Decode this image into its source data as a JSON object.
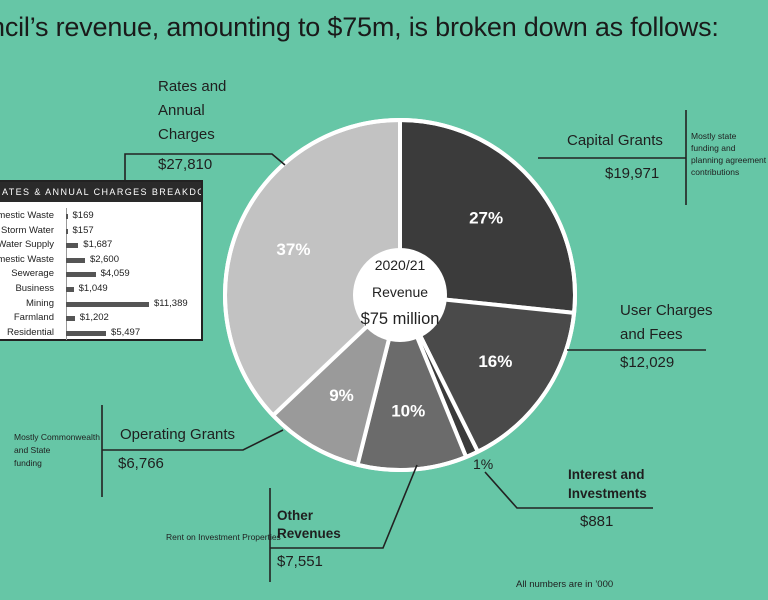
{
  "headline": "ncil’s revenue, amounting to $75m, is broken down as follows:",
  "chart_data": {
    "type": "pie",
    "center": {
      "year": "2020/21",
      "label": "Revenue",
      "total": "$75 million"
    },
    "slices": [
      {
        "name": "Capital Grants",
        "value": 19971,
        "value_label": "$19,971",
        "percent_label": "27%",
        "color": "#3b3b3b"
      },
      {
        "name": "User Charges and Fees",
        "value": 12029,
        "value_label": "$12,029",
        "percent_label": "16%",
        "color": "#4a4a4a"
      },
      {
        "name": "Interest and Investments",
        "value": 881,
        "value_label": "$881",
        "percent_label": "1%",
        "color": "#3a3a3a"
      },
      {
        "name": "Other Revenues",
        "value": 7551,
        "value_label": "$7,551",
        "percent_label": "10%",
        "color": "#6b6b6b"
      },
      {
        "name": "Operating Grants",
        "value": 6766,
        "value_label": "$6,766",
        "percent_label": "9%",
        "color": "#9a9a9a"
      },
      {
        "name": "Rates and Annual Charges",
        "value": 27810,
        "value_label": "$27,810",
        "percent_label": "37%",
        "color": "#c2c2c2"
      }
    ],
    "breakdown": {
      "title": "ATES & ANNUAL CHARGES BREAKDOWN",
      "items": [
        {
          "name": "mestic Waste",
          "value": 169,
          "label": "$169"
        },
        {
          "name": "Storm Water",
          "value": 157,
          "label": "$157"
        },
        {
          "name": "Water Supply",
          "value": 1687,
          "label": "$1,687"
        },
        {
          "name": "mestic Waste",
          "value": 2600,
          "label": "$2,600"
        },
        {
          "name": "Sewerage",
          "value": 4059,
          "label": "$4,059"
        },
        {
          "name": "Business",
          "value": 1049,
          "label": "$1,049"
        },
        {
          "name": "Mining",
          "value": 11389,
          "label": "$11,389"
        },
        {
          "name": "Farmland",
          "value": 1202,
          "label": "$1,202"
        },
        {
          "name": "Residential",
          "value": 5497,
          "label": "$5,497"
        }
      ]
    }
  },
  "labels": {
    "rates_title_1": "Rates and",
    "rates_title_2": "Annual",
    "rates_title_3": "Charges",
    "rates_amount": "$27,810",
    "capital_title": "Capital Grants",
    "capital_amount": "$19,971",
    "capital_note_1": "Mostly state",
    "capital_note_2": "funding and",
    "capital_note_3": "planning agreement",
    "capital_note_4": "contributions",
    "user_title_1": "User Charges",
    "user_title_2": "and Fees",
    "user_amount": "$12,029",
    "interest_title_1": "Interest and",
    "interest_title_2": "Investments",
    "interest_amount": "$881",
    "other_title_1": "Other",
    "other_title_2": "Revenues",
    "other_amount": "$7,551",
    "other_note": "Rent on Investment Properties",
    "operating_title": "Operating Grants",
    "operating_amount": "$6,766",
    "operating_note_1": "Mostly Commonwealth",
    "operating_note_2": "and State",
    "operating_note_3": "funding"
  },
  "footnote": "All numbers are in ’000"
}
